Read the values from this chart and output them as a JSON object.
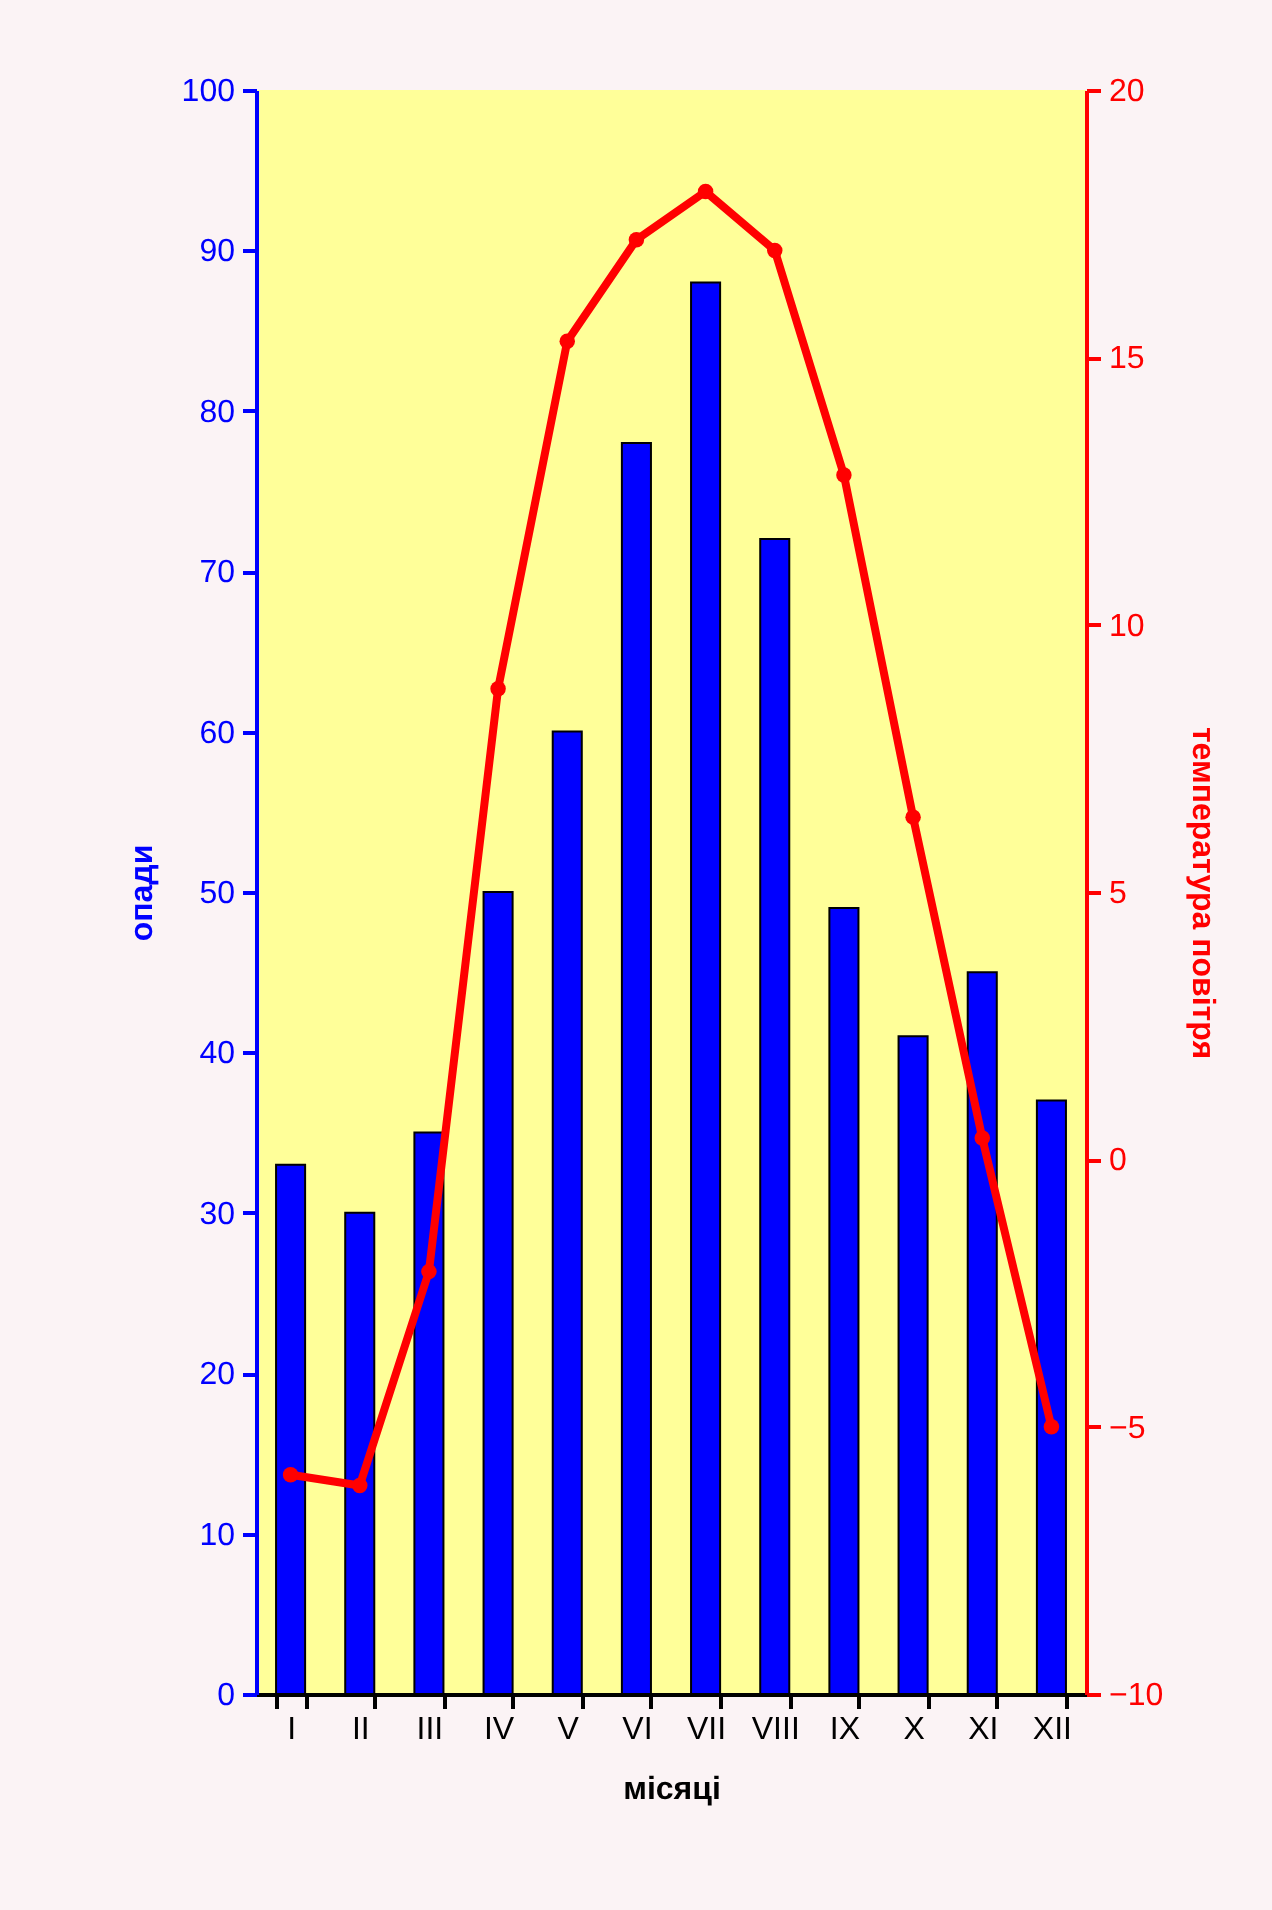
{
  "chart_data": {
    "type": "bar",
    "xlabel": "місяці",
    "ylabel": "опади",
    "y2label": "температура повітря",
    "categories": [
      "I",
      "II",
      "III",
      "IV",
      "V",
      "VI",
      "VII",
      "VIII",
      "IX",
      "X",
      "XI",
      "XII"
    ],
    "series": [
      {
        "color": "#0000ff",
        "values": [
          33,
          30,
          35,
          50,
          60,
          78,
          88,
          72,
          49,
          41,
          45,
          37
        ]
      },
      {
        "type": "line",
        "axis": "y2",
        "color": "#ff0000",
        "values": [
          -5.9,
          -6.1,
          -2.1,
          8.8,
          15.3,
          17.2,
          18.1,
          17.0,
          12.8,
          6.4,
          0.4,
          -5.0
        ]
      }
    ],
    "ylim": [
      0,
      100
    ],
    "yticks": [
      0,
      10,
      20,
      30,
      40,
      50,
      60,
      70,
      80,
      90,
      100
    ],
    "y2lim": [
      -10,
      20
    ],
    "y2ticks": [
      -10,
      -5,
      0,
      5,
      10,
      15,
      20
    ],
    "marker": "circle"
  }
}
